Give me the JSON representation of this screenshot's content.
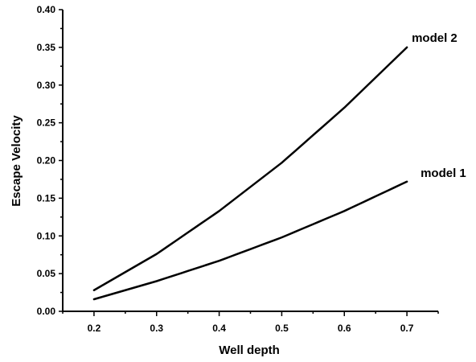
{
  "chart_data": {
    "type": "line",
    "xlabel": "Well depth",
    "ylabel": "Escape Velocity",
    "xlim": [
      0.15,
      0.75
    ],
    "ylim": [
      0.0,
      0.4
    ],
    "xticks": [
      "0.2",
      "0.3",
      "0.4",
      "0.5",
      "0.6",
      "0.7"
    ],
    "yticks": [
      "0.00",
      "0.05",
      "0.10",
      "0.15",
      "0.20",
      "0.25",
      "0.30",
      "0.35",
      "0.40"
    ],
    "grid": false,
    "series": [
      {
        "name": "model 1",
        "x": [
          0.2,
          0.3,
          0.4,
          0.5,
          0.6,
          0.7
        ],
        "y": [
          0.016,
          0.04,
          0.067,
          0.098,
          0.133,
          0.172
        ]
      },
      {
        "name": "model 2",
        "x": [
          0.2,
          0.3,
          0.4,
          0.5,
          0.6,
          0.7
        ],
        "y": [
          0.028,
          0.076,
          0.133,
          0.197,
          0.27,
          0.35
        ]
      }
    ],
    "color": "#000000"
  }
}
